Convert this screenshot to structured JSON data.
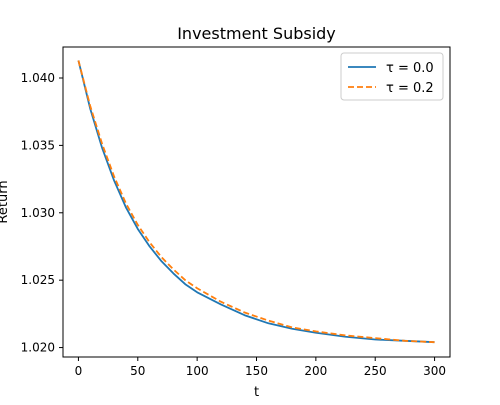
{
  "chart_data": {
    "type": "line",
    "title": "Investment Subsidy",
    "xlabel": "t",
    "ylabel": "Return",
    "xlim": [
      -13,
      313
    ],
    "ylim": [
      1.0193,
      1.0423
    ],
    "xticks": [
      0,
      50,
      100,
      150,
      200,
      250,
      300
    ],
    "yticks": [
      1.02,
      1.025,
      1.03,
      1.035,
      1.04
    ],
    "ytick_labels": [
      "1.020",
      "1.025",
      "1.030",
      "1.035",
      "1.040"
    ],
    "grid": false,
    "legend_position": "top-right",
    "x": [
      0,
      10,
      20,
      30,
      40,
      50,
      60,
      70,
      80,
      90,
      100,
      120,
      140,
      160,
      180,
      200,
      225,
      250,
      275,
      300
    ],
    "series": [
      {
        "name": "τ = 0.0",
        "color": "#1f77b4",
        "style": "solid",
        "values": [
          1.0413,
          1.0377,
          1.0348,
          1.0324,
          1.0304,
          1.0288,
          1.0275,
          1.0264,
          1.0255,
          1.0247,
          1.0241,
          1.0232,
          1.0224,
          1.0218,
          1.0214,
          1.0211,
          1.0208,
          1.0206,
          1.0205,
          1.0204
        ]
      },
      {
        "name": "τ = 0.2",
        "color": "#ff7f0e",
        "style": "dashed",
        "values": [
          1.0413,
          1.0379,
          1.0351,
          1.0327,
          1.0307,
          1.0291,
          1.0278,
          1.0267,
          1.0258,
          1.025,
          1.0244,
          1.0234,
          1.0226,
          1.022,
          1.0215,
          1.0212,
          1.0209,
          1.0207,
          1.0205,
          1.0204
        ]
      }
    ]
  }
}
